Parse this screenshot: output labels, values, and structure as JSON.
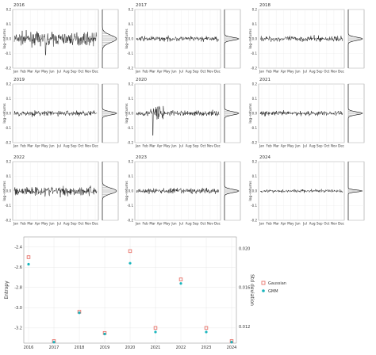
{
  "chart_data": [
    {
      "type": "grid",
      "panels": [
        {
          "title": "2016",
          "amplitude": 0.045,
          "spike": {
            "at": 0.38,
            "value": -0.11
          }
        },
        {
          "title": "2017",
          "amplitude": 0.018,
          "spike": null
        },
        {
          "title": "2018",
          "amplitude": 0.02,
          "spike": null
        },
        {
          "title": "2019",
          "amplitude": 0.02,
          "spike": null
        },
        {
          "title": "2020",
          "amplitude": 0.02,
          "spike": {
            "at": 0.2,
            "value": -0.15
          },
          "burst": [
            0.17,
            0.33,
            0.075
          ]
        },
        {
          "title": "2021",
          "amplitude": 0.018,
          "spike": null
        },
        {
          "title": "2022",
          "amplitude": 0.035,
          "spike": null
        },
        {
          "title": "2023",
          "amplitude": 0.02,
          "spike": null
        },
        {
          "title": "2024",
          "amplitude": 0.012,
          "spike": null
        }
      ],
      "months": [
        "Jan",
        "Feb",
        "Mar",
        "Apr",
        "May",
        "Jun",
        "Jul",
        "Aug",
        "Sep",
        "Oct",
        "Nov",
        "Dec"
      ],
      "ylabel": "log–returns",
      "ylim": [
        -0.2,
        0.2
      ],
      "yticks": [
        -0.2,
        -0.1,
        0.0,
        0.1,
        0.2
      ],
      "ytick_labels": [
        "-0.2",
        "-0.1",
        "0.0",
        "0.1",
        "0.2"
      ]
    },
    {
      "type": "scatter",
      "xlabel": "",
      "ylabel": "Entropy",
      "ylabel_right": "Std deviation",
      "x": [
        2016,
        2017,
        2018,
        2019,
        2020,
        2021,
        2022,
        2023,
        2024
      ],
      "xtick_labels": [
        "2016",
        "2017",
        "2018",
        "2019",
        "2020",
        "2021",
        "2022",
        "2023",
        "2024"
      ],
      "ylim": [
        -3.35,
        -2.3
      ],
      "yticks": [
        -3.2,
        -3.0,
        -2.8,
        -2.6,
        -2.4
      ],
      "ytick_labels": [
        "-3.2",
        "-3.0",
        "-2.8",
        "-2.6",
        "-2.4"
      ],
      "ylim_right": [
        0.0103,
        0.0212
      ],
      "yticks_right": [
        0.012,
        0.016,
        0.02
      ],
      "ytick_labels_right": [
        "0.012",
        "0.016",
        "0.020"
      ],
      "legend_position": "right",
      "series": [
        {
          "name": "Gaussian",
          "color": "#e8746b",
          "values": [
            -2.5,
            -3.33,
            -3.04,
            -3.25,
            -2.44,
            -3.2,
            -2.72,
            -3.2,
            -3.33
          ]
        },
        {
          "name": "GMM",
          "color": "#19b5bd",
          "values": [
            -2.57,
            -3.34,
            -3.05,
            -3.26,
            -2.56,
            -3.24,
            -2.76,
            -3.24,
            -3.34
          ]
        }
      ],
      "grid": true
    }
  ]
}
